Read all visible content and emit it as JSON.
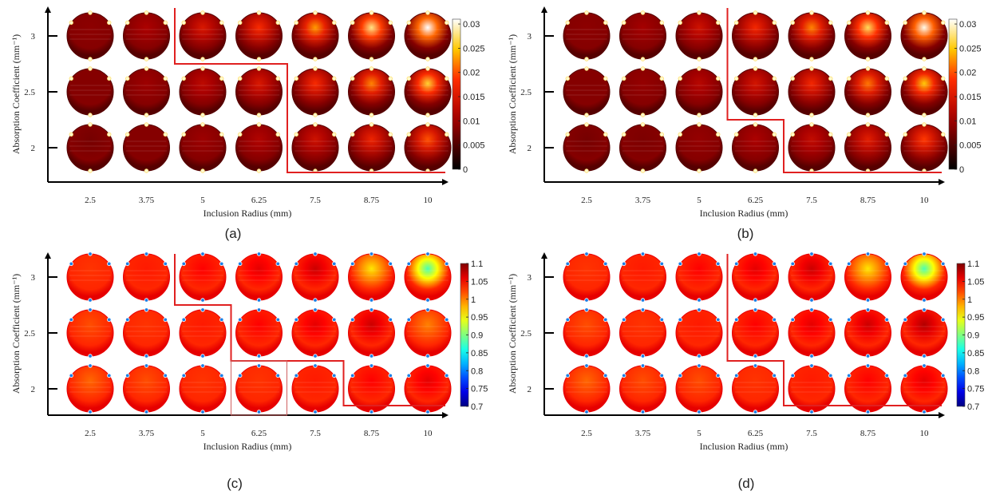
{
  "chart_data": [
    {
      "id": "a",
      "type": "heatmap",
      "panel_label": "(a)",
      "xlabel": "Inclusion Radius (mm)",
      "ylabel": "Absorption Coefficient (mm⁻¹)",
      "x": [
        "2.5",
        "3.75",
        "5",
        "6.25",
        "7.5",
        "8.75",
        "10"
      ],
      "y": [
        "2",
        "2.5",
        "3"
      ],
      "colorbar": {
        "colormap": "hot",
        "ticks": [
          "0",
          "0.005",
          "0.01",
          "0.015",
          "0.02",
          "0.025",
          "0.03"
        ],
        "min": 0,
        "max": 0.031
      },
      "inclusion_peak": [
        [
          0.0075,
          0.0085,
          0.01,
          0.0115,
          0.014,
          0.017,
          0.02
        ],
        [
          0.0085,
          0.01,
          0.0125,
          0.015,
          0.018,
          0.022,
          0.026
        ],
        [
          0.009,
          0.011,
          0.015,
          0.018,
          0.023,
          0.028,
          0.031
        ]
      ],
      "boundary_description": "detectability boundary",
      "boundary_cols_detected_from": {
        "3": 2,
        "2.5": 4,
        "2": 7
      }
    },
    {
      "id": "b",
      "type": "heatmap",
      "panel_label": "(b)",
      "xlabel": "Inclusion Radius (mm)",
      "ylabel": "Absorption Coefficient (mm⁻¹)",
      "x": [
        "2.5",
        "3.75",
        "5",
        "6.25",
        "7.5",
        "8.75",
        "10"
      ],
      "y": [
        "2",
        "2.5",
        "3"
      ],
      "colorbar": {
        "colormap": "hot",
        "ticks": [
          "0",
          "0.005",
          "0.01",
          "0.015",
          "0.02",
          "0.025",
          "0.03"
        ],
        "min": 0,
        "max": 0.031
      },
      "inclusion_peak": [
        [
          0.0075,
          0.008,
          0.0095,
          0.011,
          0.013,
          0.016,
          0.019
        ],
        [
          0.0085,
          0.0095,
          0.012,
          0.0145,
          0.0175,
          0.0215,
          0.025
        ],
        [
          0.009,
          0.0105,
          0.014,
          0.0175,
          0.022,
          0.027,
          0.0305
        ]
      ],
      "boundary_cols_detected_from": {
        "3": 3,
        "2.5": 3,
        "2": 4
      }
    },
    {
      "id": "c",
      "type": "heatmap",
      "panel_label": "(c)",
      "xlabel": "Inclusion Radius (mm)",
      "ylabel": "Absorption Coefficient (mm⁻¹)",
      "x": [
        "2.5",
        "3.75",
        "5",
        "6.25",
        "7.5",
        "8.75",
        "10"
      ],
      "y": [
        "2",
        "2.5",
        "3"
      ],
      "colorbar": {
        "colormap": "jet",
        "ticks": [
          "0.7",
          "0.75",
          "0.8",
          "0.85",
          "0.9",
          "0.95",
          "1",
          "1.05",
          "1.1"
        ],
        "min": 0.7,
        "max": 1.1
      },
      "inclusion_peak": [
        [
          1.01,
          1.02,
          1.03,
          1.03,
          1.04,
          1.05,
          1.06
        ],
        [
          1.02,
          1.03,
          1.04,
          1.05,
          1.06,
          1.07,
          1.0
        ],
        [
          1.03,
          1.04,
          1.05,
          1.06,
          1.07,
          0.96,
          0.88
        ]
      ],
      "boundary_cols_detected_from": {
        "3": 2,
        "2.5": 3,
        "2": 5
      },
      "highlighted_cell": {
        "x": "6.25",
        "y": "2"
      }
    },
    {
      "id": "d",
      "type": "heatmap",
      "panel_label": "(d)",
      "xlabel": "Inclusion Radius (mm)",
      "ylabel": "Absorption Coefficient (mm⁻¹)",
      "x": [
        "2.5",
        "3.75",
        "5",
        "6.25",
        "7.5",
        "8.75",
        "10"
      ],
      "y": [
        "2",
        "2.5",
        "3"
      ],
      "colorbar": {
        "colormap": "jet",
        "ticks": [
          "0.7",
          "0.75",
          "0.8",
          "0.85",
          "0.9",
          "0.95",
          "1",
          "1.05",
          "1.1"
        ],
        "min": 0.7,
        "max": 1.1
      },
      "inclusion_peak": [
        [
          1.01,
          1.02,
          1.02,
          1.03,
          1.04,
          1.05,
          1.06
        ],
        [
          1.02,
          1.03,
          1.04,
          1.05,
          1.06,
          1.07,
          1.08
        ],
        [
          1.03,
          1.04,
          1.05,
          1.06,
          1.07,
          0.96,
          0.88
        ]
      ],
      "boundary_cols_detected_from": {
        "3": 3,
        "2.5": 3,
        "2": 4
      }
    }
  ],
  "colors": {
    "boundary_line": "#e02020",
    "axis": "#000000"
  }
}
